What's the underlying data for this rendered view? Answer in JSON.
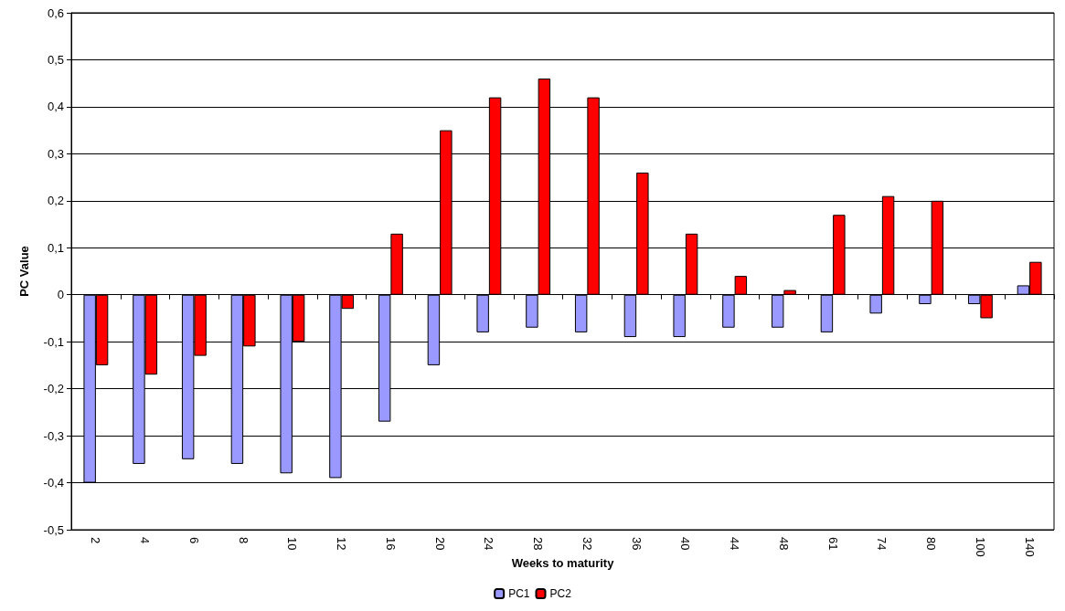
{
  "chart_data": {
    "type": "bar",
    "xlabel": "Weeks to maturity",
    "ylabel": "PC Value",
    "categories": [
      "2",
      "4",
      "6",
      "8",
      "10",
      "12",
      "16",
      "20",
      "24",
      "28",
      "32",
      "36",
      "40",
      "44",
      "48",
      "61",
      "74",
      "80",
      "100",
      "140"
    ],
    "series": [
      {
        "name": "PC1",
        "color": "#9999ff",
        "values": [
          -0.4,
          -0.36,
          -0.35,
          -0.36,
          -0.38,
          -0.39,
          -0.27,
          -0.15,
          -0.08,
          -0.07,
          -0.08,
          -0.09,
          -0.09,
          -0.07,
          -0.07,
          -0.08,
          -0.04,
          -0.02,
          -0.02,
          0.02
        ]
      },
      {
        "name": "PC2",
        "color": "#ff0000",
        "values": [
          -0.15,
          -0.17,
          -0.13,
          -0.11,
          -0.1,
          -0.03,
          0.13,
          0.35,
          0.42,
          0.46,
          0.42,
          0.26,
          0.13,
          0.04,
          0.01,
          0.17,
          0.21,
          0.2,
          -0.05,
          0.07
        ]
      }
    ],
    "ylim": [
      -0.5,
      0.6
    ],
    "yticks": [
      {
        "value": -0.5,
        "label": "-0,5"
      },
      {
        "value": -0.4,
        "label": "-0,4"
      },
      {
        "value": -0.3,
        "label": "-0,3"
      },
      {
        "value": -0.2,
        "label": "-0,2"
      },
      {
        "value": -0.1,
        "label": "-0,1"
      },
      {
        "value": 0,
        "label": "0"
      },
      {
        "value": 0.1,
        "label": "0,1"
      },
      {
        "value": 0.2,
        "label": "0,2"
      },
      {
        "value": 0.3,
        "label": "0,3"
      },
      {
        "value": 0.4,
        "label": "0,4"
      },
      {
        "value": 0.5,
        "label": "0,5"
      },
      {
        "value": 0.6,
        "label": "0,6"
      }
    ],
    "grid": "y",
    "legend": "bottom"
  }
}
